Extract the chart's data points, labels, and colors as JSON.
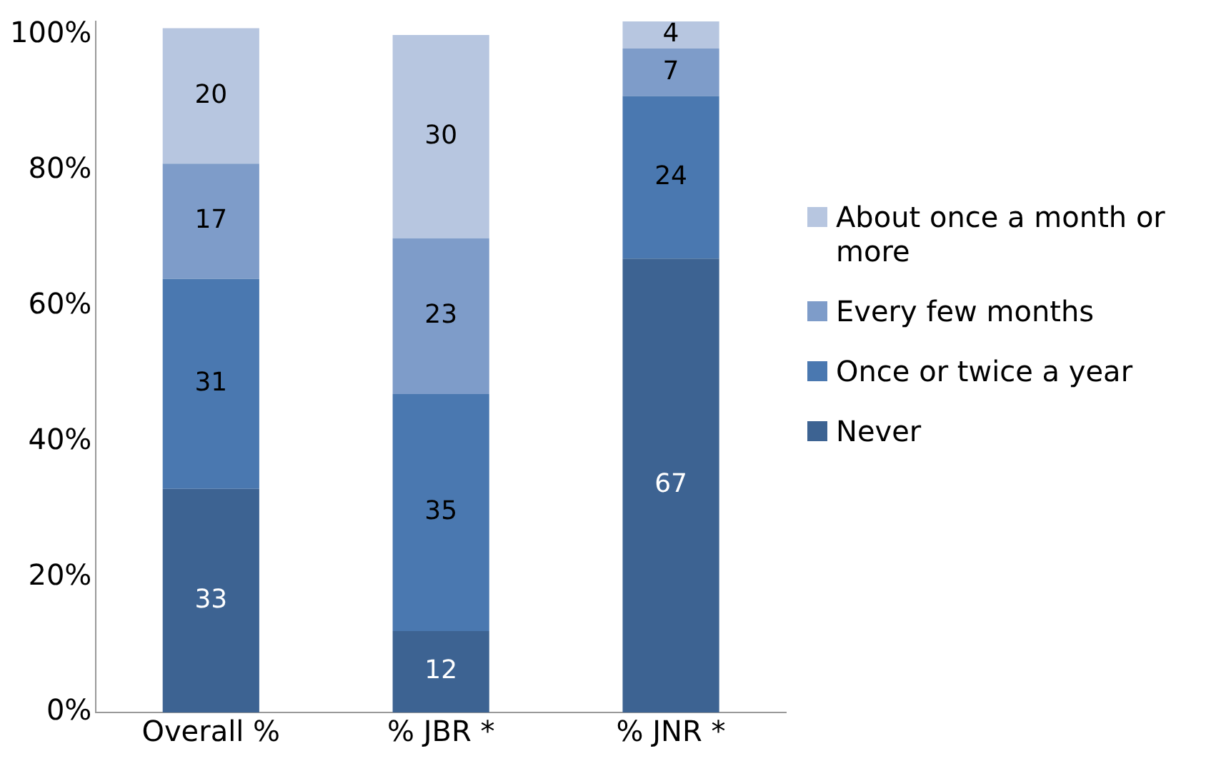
{
  "chart_data": {
    "type": "bar",
    "stacked": true,
    "categories": [
      "Overall %",
      "% JBR *",
      "% JNR *"
    ],
    "series": [
      {
        "name": "Never",
        "color": "#3d6392",
        "values": [
          33,
          12,
          67
        ]
      },
      {
        "name": "Once or twice a year",
        "color": "#4a78b0",
        "values": [
          31,
          35,
          24
        ]
      },
      {
        "name": "Every few months",
        "color": "#7e9cc9",
        "values": [
          17,
          23,
          7
        ]
      },
      {
        "name": "About once a month or more",
        "color": "#b7c6e0",
        "values": [
          20,
          30,
          4
        ]
      }
    ],
    "ylim": [
      0,
      102
    ],
    "yticks": [
      {
        "value": 0,
        "label": "0%"
      },
      {
        "value": 20,
        "label": "20%"
      },
      {
        "value": 40,
        "label": "40%"
      },
      {
        "value": 60,
        "label": "60%"
      },
      {
        "value": 80,
        "label": "80%"
      },
      {
        "value": 100,
        "label": "100%"
      }
    ],
    "grid": false,
    "legend": "right",
    "data_labels": true
  }
}
